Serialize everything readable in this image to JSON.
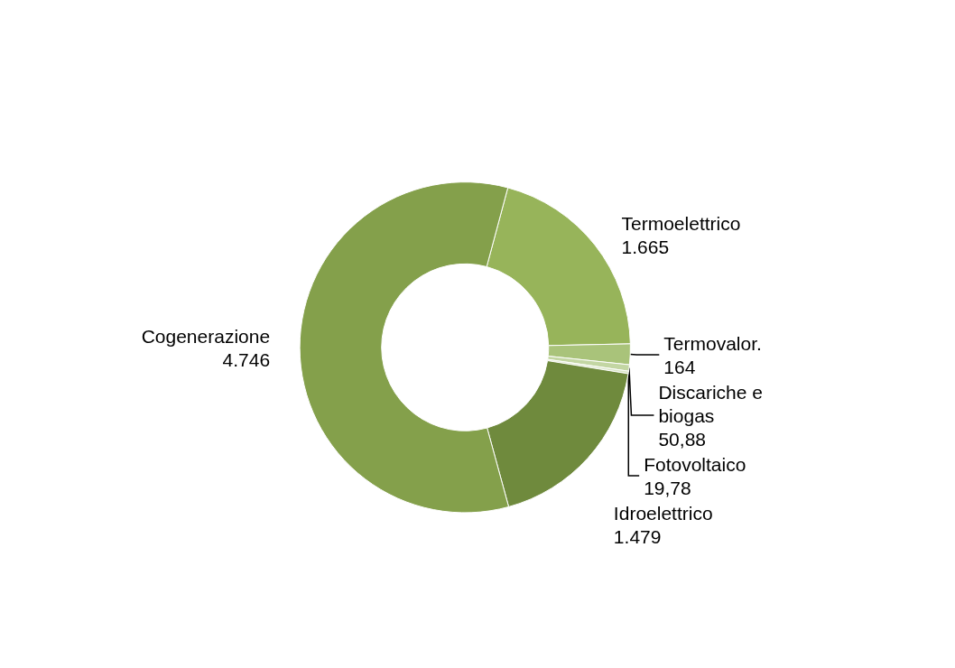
{
  "chart_data": {
    "type": "donut",
    "categories": [
      "Termoelettrico",
      "Termovalor.",
      "Discariche e biogas",
      "Fotovoltaico",
      "Idroelettrico",
      "Cogenerazione"
    ],
    "values": [
      1665,
      164,
      50.88,
      19.78,
      1479,
      4746
    ],
    "value_labels": [
      "1.665",
      "164",
      "50,88",
      "19,78",
      "1.479",
      "4.746"
    ],
    "colors": [
      "#97b45a",
      "#a9c37a",
      "#c3d6a3",
      "#d9e5c6",
      "#6f8a3d",
      "#84a04b"
    ],
    "legend": false
  }
}
